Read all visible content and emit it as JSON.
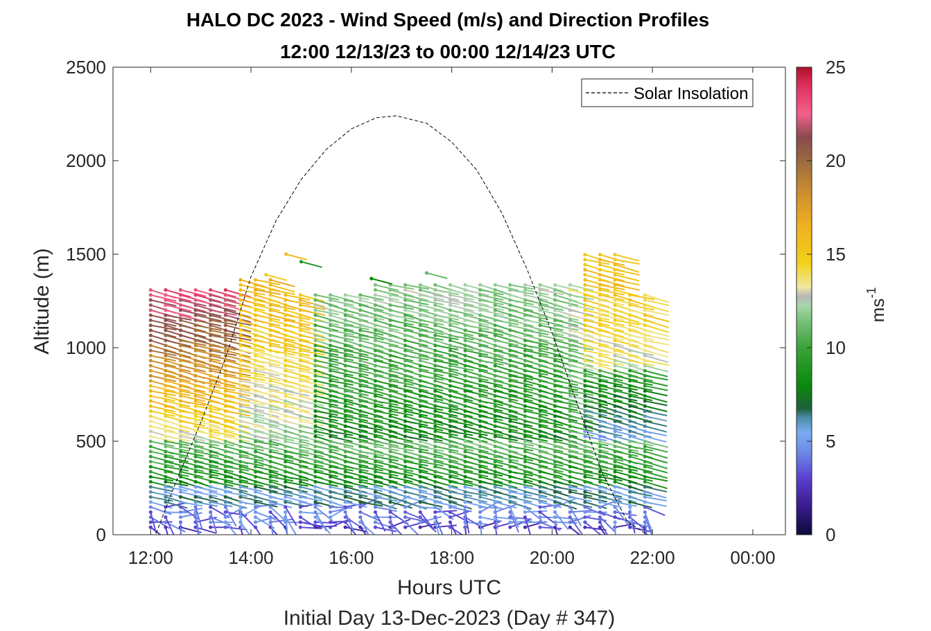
{
  "chart_data": {
    "type": "wind-barb-profile",
    "title": "HALO DC 2023 - Wind Speed (m/s) and Direction Profiles",
    "subtitle": "12:00 12/13/23 to 00:00 12/14/23  UTC",
    "xlabel": "Hours UTC",
    "xlabel_note": "Initial Day 13-Dec-2023 (Day # 347)",
    "ylabel": "Altitude (m)",
    "x_ticks": [
      "12:00",
      "14:00",
      "16:00",
      "18:00",
      "20:00",
      "22:00",
      "00:00"
    ],
    "x_tick_hours": [
      12,
      14,
      16,
      18,
      20,
      22,
      24
    ],
    "xlim_hours": [
      11.25,
      24.65
    ],
    "y_ticks": [
      0,
      500,
      1000,
      1500,
      2000,
      2500
    ],
    "ylim": [
      0,
      2500
    ],
    "colorbar": {
      "label": "ms-1",
      "label_base": "ms",
      "label_exp": "-1",
      "ticks": [
        0,
        5,
        10,
        15,
        20,
        25
      ],
      "range": [
        0,
        25
      ]
    },
    "legend": {
      "entries": [
        "Solar Insolation"
      ],
      "placement": "top-right"
    },
    "solar_insolation": {
      "x_hours": [
        11.25,
        12.1,
        12.5,
        13.0,
        13.5,
        14.0,
        14.5,
        15.0,
        15.5,
        16.0,
        16.5,
        16.9,
        17.5,
        18.0,
        18.5,
        19.0,
        19.5,
        20.0,
        20.5,
        21.0,
        21.5,
        21.9,
        24.65
      ],
      "y": [
        0,
        0,
        280,
        600,
        950,
        1380,
        1680,
        1900,
        2060,
        2170,
        2230,
        2240,
        2200,
        2100,
        1950,
        1720,
        1420,
        1080,
        700,
        330,
        70,
        0,
        0
      ]
    },
    "profiles": {
      "start_hour": 12.0,
      "end_hour": 21.85,
      "count": 34,
      "speed_summary": {
        "near_surface_0_150m": "2-5",
        "boundary_layer_150_700m": "6-12",
        "upper_12_15h_700_1300m": "14-23",
        "upper_15_20h_700_1300m": "7-12",
        "upper_20_22h_1000_1500m": "13-16"
      },
      "direction_summary": "predominantly westerly to northwesterly aloft; variable near surface"
    }
  }
}
